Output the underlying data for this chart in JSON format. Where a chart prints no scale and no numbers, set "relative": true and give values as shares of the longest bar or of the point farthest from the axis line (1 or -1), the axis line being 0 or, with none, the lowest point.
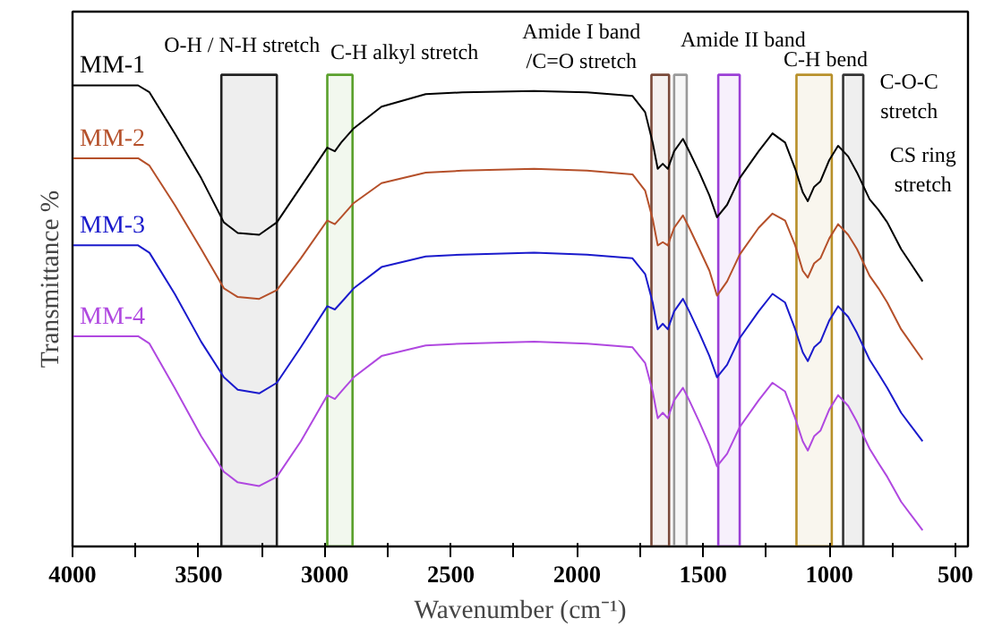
{
  "chart_data": {
    "type": "line",
    "relative": true,
    "xlabel": "Wavenumber (cm⁻¹)",
    "ylabel": "Transmittance %",
    "tick_labels": "x",
    "xlim": [
      4000,
      450
    ],
    "xticks": [
      4000,
      {
        "value": 3750,
        "label": null
      },
      3500,
      {
        "value": 3250,
        "label": null
      },
      3000,
      {
        "value": 2750,
        "label": null
      },
      2500,
      {
        "value": 2250,
        "label": null
      },
      2000,
      {
        "value": 1750,
        "label": null
      },
      1500,
      {
        "value": 1250,
        "label": null
      },
      1000,
      {
        "value": 750,
        "label": null
      },
      500
    ],
    "x": [
      4000,
      3740,
      3695,
      3595,
      3490,
      3400,
      3345,
      3260,
      3190,
      3095,
      2990,
      2960,
      2935,
      2885,
      2775,
      2600,
      2455,
      2170,
      1960,
      1780,
      1730,
      1700,
      1680,
      1660,
      1640,
      1615,
      1580,
      1555,
      1515,
      1475,
      1445,
      1405,
      1355,
      1280,
      1225,
      1175,
      1135,
      1105,
      1085,
      1060,
      1035,
      1000,
      965,
      925,
      890,
      840,
      805,
      770,
      715,
      630
    ],
    "series": [
      {
        "name": "MM-1",
        "color": "#000000",
        "values": [
          1.0,
          1.0,
          0.985,
          0.896,
          0.799,
          0.703,
          0.68,
          0.676,
          0.703,
          0.78,
          0.865,
          0.857,
          0.876,
          0.907,
          0.954,
          0.981,
          0.985,
          0.988,
          0.985,
          0.977,
          0.942,
          0.876,
          0.819,
          0.83,
          0.819,
          0.857,
          0.884,
          0.857,
          0.811,
          0.761,
          0.714,
          0.741,
          0.799,
          0.857,
          0.896,
          0.876,
          0.819,
          0.768,
          0.749,
          0.78,
          0.792,
          0.838,
          0.869,
          0.846,
          0.811,
          0.753,
          0.73,
          0.703,
          0.645,
          0.575
        ]
      },
      {
        "name": "MM-2",
        "color": "#b5502a",
        "values": [
          0.842,
          0.842,
          0.826,
          0.741,
          0.645,
          0.56,
          0.541,
          0.537,
          0.556,
          0.625,
          0.707,
          0.699,
          0.714,
          0.745,
          0.788,
          0.811,
          0.815,
          0.819,
          0.815,
          0.807,
          0.772,
          0.71,
          0.653,
          0.66,
          0.653,
          0.691,
          0.718,
          0.691,
          0.645,
          0.598,
          0.544,
          0.575,
          0.633,
          0.691,
          0.722,
          0.707,
          0.653,
          0.598,
          0.583,
          0.614,
          0.625,
          0.668,
          0.699,
          0.676,
          0.645,
          0.587,
          0.56,
          0.529,
          0.471,
          0.405
        ]
      },
      {
        "name": "MM-3",
        "color": "#1a1acc",
        "values": [
          0.653,
          0.653,
          0.637,
          0.548,
          0.444,
          0.367,
          0.34,
          0.332,
          0.355,
          0.432,
          0.521,
          0.514,
          0.529,
          0.56,
          0.606,
          0.629,
          0.633,
          0.637,
          0.633,
          0.625,
          0.591,
          0.529,
          0.471,
          0.483,
          0.471,
          0.51,
          0.537,
          0.51,
          0.463,
          0.413,
          0.367,
          0.394,
          0.452,
          0.51,
          0.548,
          0.529,
          0.471,
          0.421,
          0.402,
          0.432,
          0.444,
          0.49,
          0.521,
          0.498,
          0.463,
          0.405,
          0.375,
          0.344,
          0.29,
          0.228
        ]
      },
      {
        "name": "MM-4",
        "color": "#b048e0",
        "values": [
          0.456,
          0.456,
          0.44,
          0.344,
          0.239,
          0.162,
          0.139,
          0.131,
          0.151,
          0.228,
          0.328,
          0.32,
          0.336,
          0.367,
          0.413,
          0.436,
          0.44,
          0.444,
          0.44,
          0.432,
          0.398,
          0.336,
          0.278,
          0.29,
          0.278,
          0.317,
          0.344,
          0.317,
          0.27,
          0.22,
          0.174,
          0.201,
          0.259,
          0.317,
          0.355,
          0.336,
          0.278,
          0.228,
          0.208,
          0.239,
          0.251,
          0.297,
          0.328,
          0.305,
          0.27,
          0.212,
          0.181,
          0.151,
          0.097,
          0.035
        ]
      }
    ],
    "bands": [
      {
        "axis": "x",
        "from": 3410,
        "to": 3190,
        "color": "#222222",
        "label": "O-H / N-H stretch"
      },
      {
        "axis": "x",
        "from": 2990,
        "to": 2890,
        "color": "#5aa02c",
        "label": "C-H alkyl stretch"
      },
      {
        "axis": "x",
        "from": 1705,
        "to": 1635,
        "color": "#7a4a3a",
        "label": "Amide I band\n/C=O stretch"
      },
      {
        "axis": "x",
        "from": 1615,
        "to": 1565,
        "color": "#999999",
        "label": "Amide II band"
      },
      {
        "axis": "x",
        "from": 1440,
        "to": 1355,
        "color": "#9b3fd6",
        "label": "C-H bend"
      },
      {
        "axis": "x",
        "from": 1130,
        "to": 990,
        "color": "#b8902a",
        "label": "C-O-C\nstretch"
      },
      {
        "axis": "x",
        "from": 945,
        "to": 865,
        "color": "#333333",
        "label": "CS ring\nstretch"
      }
    ]
  }
}
